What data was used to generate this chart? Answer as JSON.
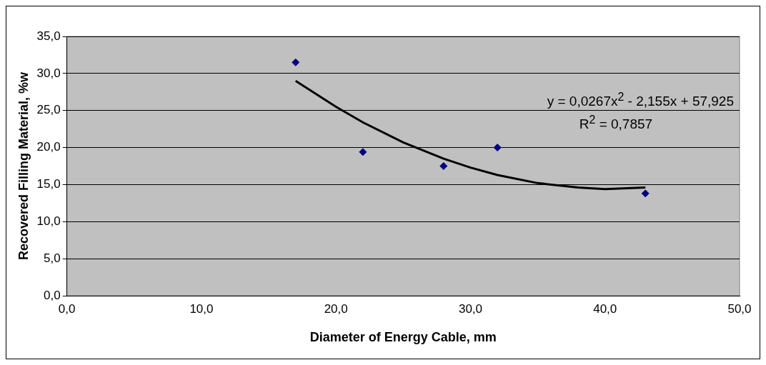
{
  "chart_data": {
    "type": "scatter",
    "xlabel": "Diameter of Energy Cable, mm",
    "ylabel": "Recovered Filling Material, %w",
    "xlim": [
      0,
      50
    ],
    "xticks": [
      {
        "value": 0,
        "label": "0,0"
      },
      {
        "value": 10,
        "label": "10,0"
      },
      {
        "value": 20,
        "label": "20,0"
      },
      {
        "value": 30,
        "label": "30,0"
      },
      {
        "value": 40,
        "label": "40,0"
      },
      {
        "value": 50,
        "label": "50,0"
      }
    ],
    "ylim": [
      0,
      35
    ],
    "yticks": [
      {
        "value": 0,
        "label": "0,0"
      },
      {
        "value": 5,
        "label": "5,0"
      },
      {
        "value": 10,
        "label": "10,0"
      },
      {
        "value": 15,
        "label": "15,0"
      },
      {
        "value": 20,
        "label": "20,0"
      },
      {
        "value": 25,
        "label": "25,0"
      },
      {
        "value": 30,
        "label": "30,0"
      },
      {
        "value": 35,
        "label": "35,0"
      }
    ],
    "grid": "y",
    "legend": false,
    "series": [
      {
        "type": "scatter",
        "color": "#000080",
        "marker": "diamond",
        "x": [
          17,
          22,
          28,
          32,
          43
        ],
        "values": [
          31.5,
          19.4,
          17.5,
          20.0,
          13.8
        ]
      },
      {
        "type": "line",
        "color": "#000000",
        "marker": "none",
        "line_style": "solid",
        "x": [
          17,
          20,
          22,
          25,
          28,
          30,
          32,
          35,
          38,
          40,
          43
        ],
        "values": [
          29.0,
          25.5,
          23.4,
          20.7,
          18.5,
          17.3,
          16.3,
          15.2,
          14.6,
          14.4,
          14.6
        ]
      }
    ],
    "annotations": [
      "y = 0,0267x$^{2}$ - 2,155x + 57,925",
      "R$^{2}$ = 0,7857"
    ]
  }
}
